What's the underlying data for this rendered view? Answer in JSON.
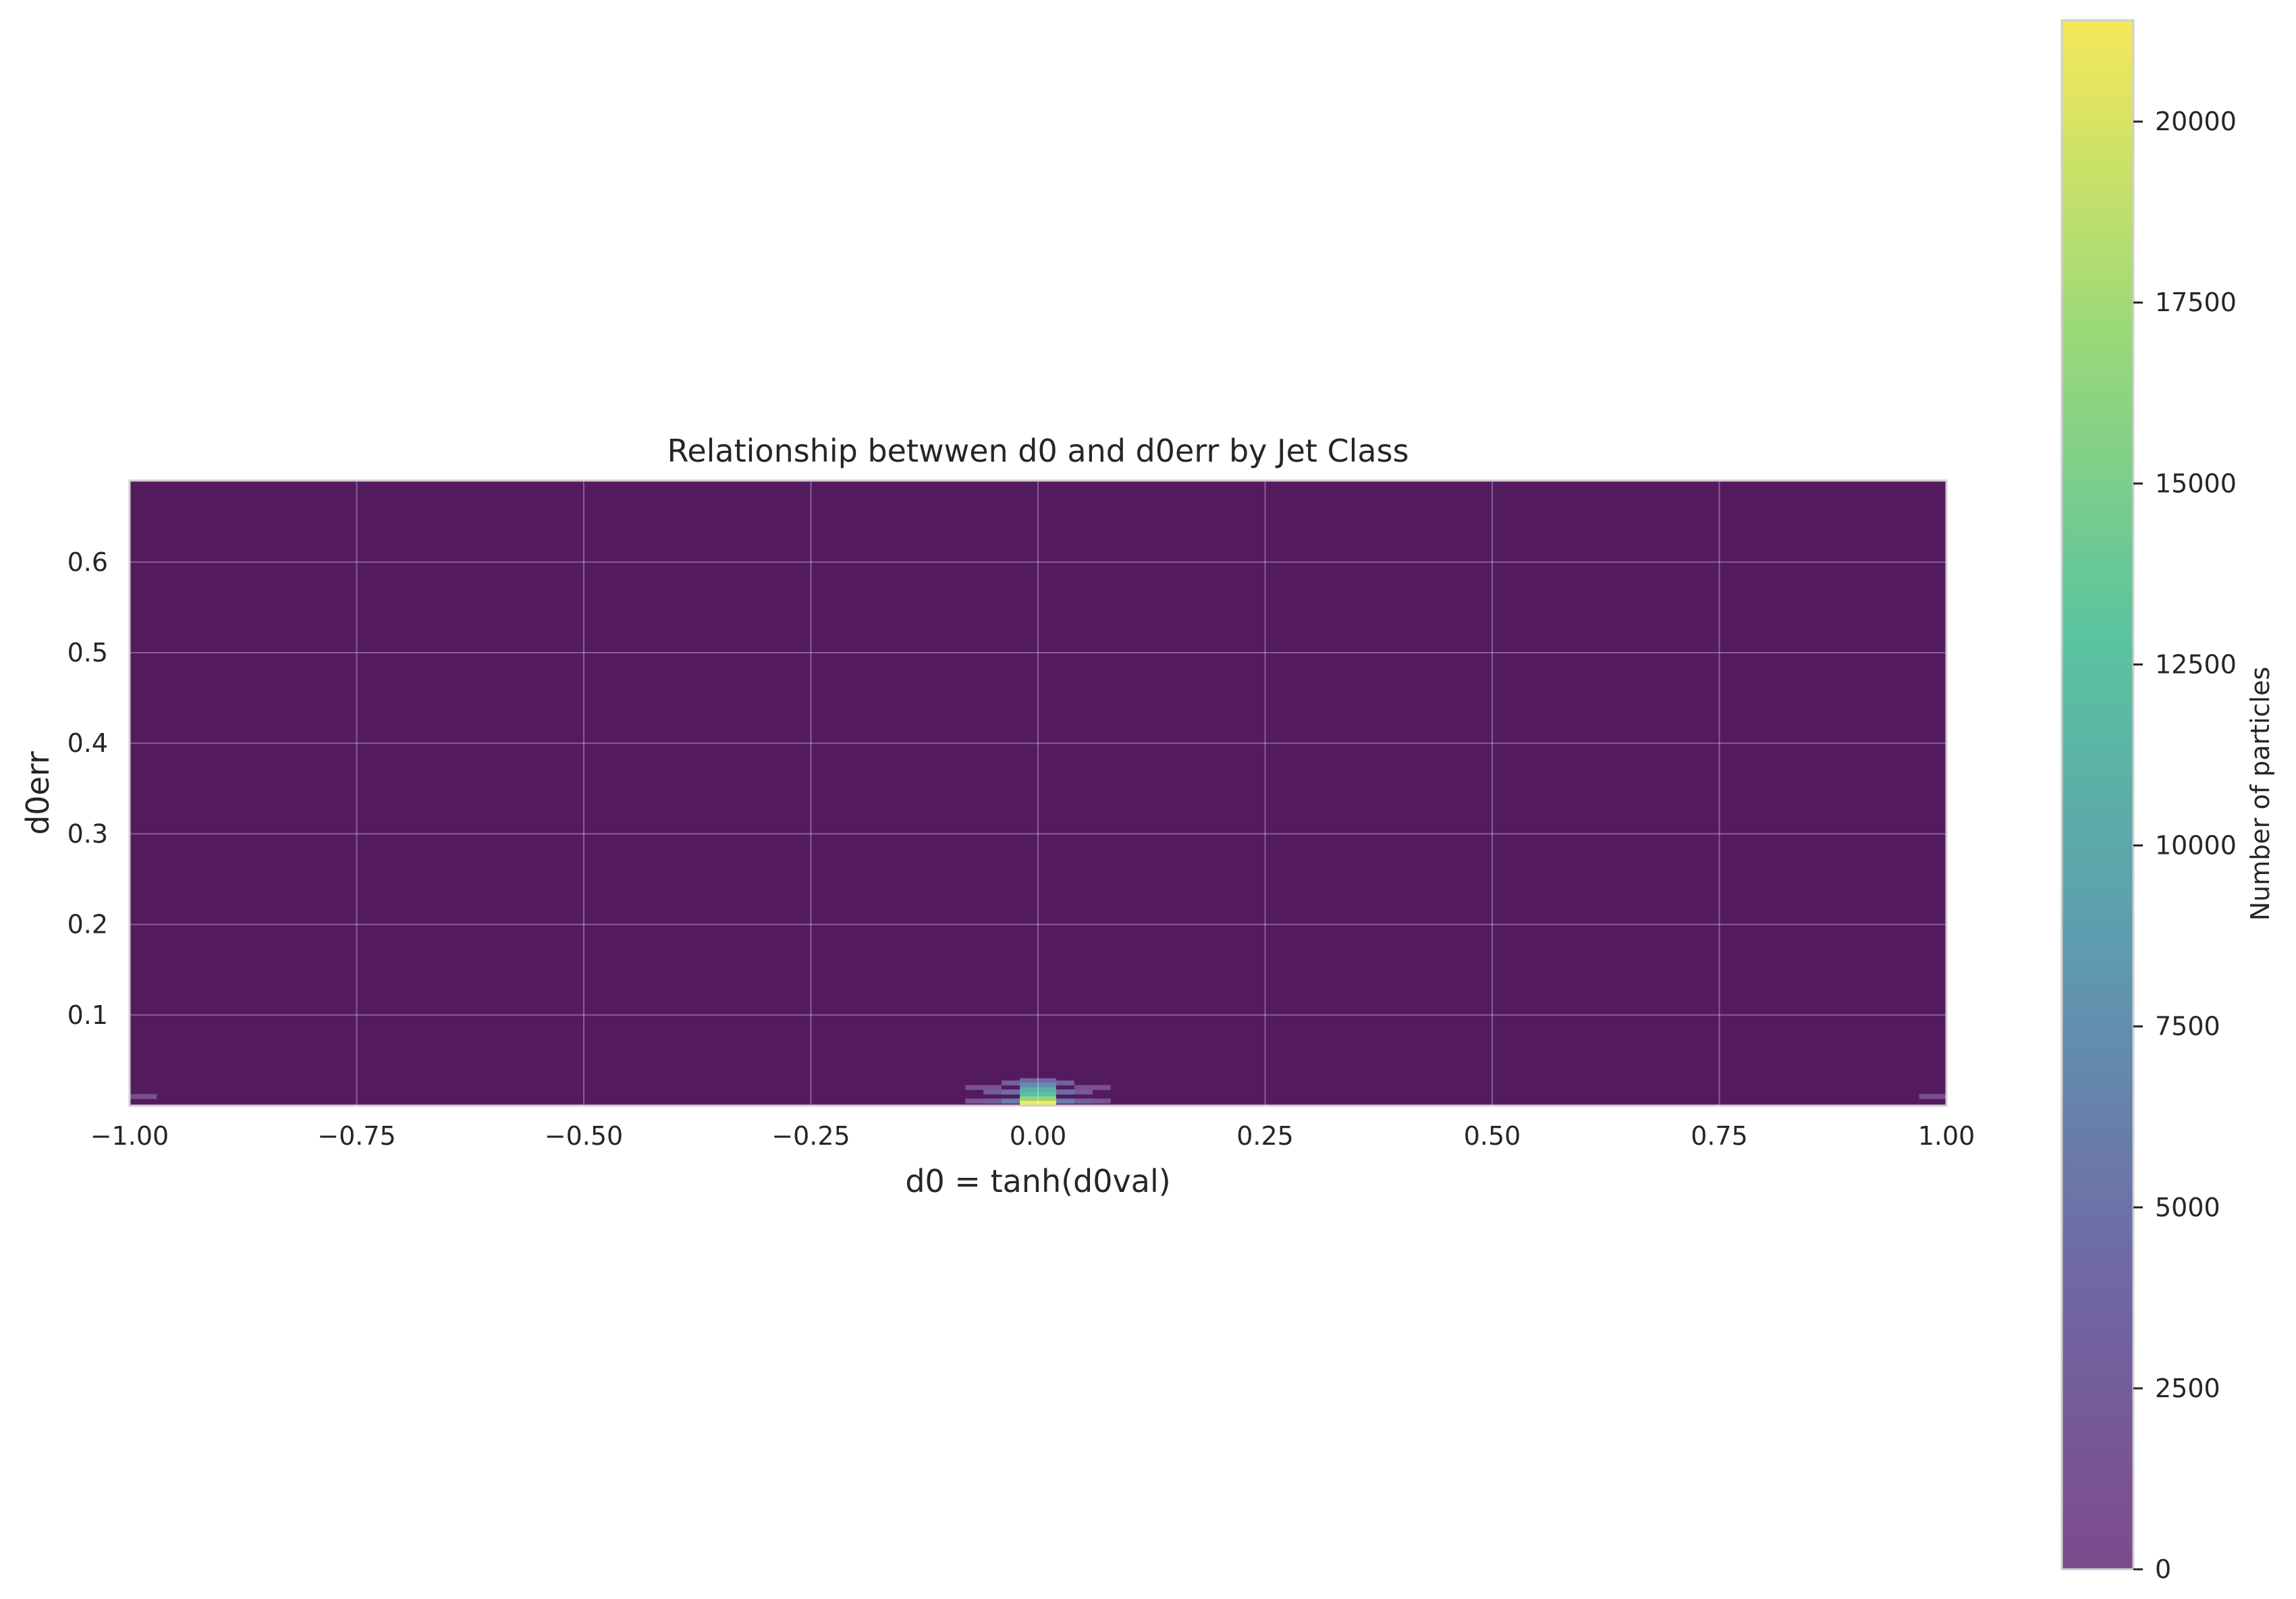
{
  "chart_data": {
    "type": "heatmap",
    "title": "Relationship betwwen d0 and d0err by Jet Class",
    "xlabel": "d0 = tanh(d0val)",
    "ylabel": "d0err",
    "xlim": [
      -1.0,
      1.0
    ],
    "ylim": [
      0.0,
      0.69
    ],
    "x_ticks": [
      -1.0,
      -0.75,
      -0.5,
      -0.25,
      0.0,
      0.25,
      0.5,
      0.75,
      1.0
    ],
    "x_tick_labels": [
      "−1.00",
      "−0.75",
      "−0.50",
      "−0.25",
      "0.00",
      "0.25",
      "0.50",
      "0.75",
      "1.00"
    ],
    "y_ticks": [
      0.1,
      0.2,
      0.3,
      0.4,
      0.5,
      0.6
    ],
    "y_tick_labels": [
      "0.1",
      "0.2",
      "0.3",
      "0.4",
      "0.5",
      "0.6"
    ],
    "grid": true,
    "colormap": "viridis",
    "background_color": "#541a5e",
    "colorbar": {
      "label": "Number of particles",
      "range": [
        0,
        21400
      ],
      "ticks": [
        0,
        2500,
        5000,
        7500,
        10000,
        12500,
        15000,
        17500,
        20000
      ],
      "tick_labels": [
        "0",
        "2500",
        "5000",
        "7500",
        "10000",
        "12500",
        "15000",
        "17500",
        "20000"
      ],
      "stops": [
        "#7d4a8c",
        "#6f6aa6",
        "#5e9bb0",
        "#5ac3a0",
        "#9bd978",
        "#f6e85a"
      ]
    },
    "cells": [
      {
        "x": 0.0,
        "y": 0.0025,
        "count": 21400
      },
      {
        "x": 0.0,
        "y": 0.0075,
        "count": 16500
      },
      {
        "x": 0.0,
        "y": 0.0125,
        "count": 12500
      },
      {
        "x": 0.0,
        "y": 0.0175,
        "count": 10500
      },
      {
        "x": 0.0,
        "y": 0.0225,
        "count": 7500
      },
      {
        "x": 0.0,
        "y": 0.0275,
        "count": 4000
      },
      {
        "x": -0.02,
        "y": 0.005,
        "count": 6000
      },
      {
        "x": 0.02,
        "y": 0.005,
        "count": 6000
      },
      {
        "x": -0.02,
        "y": 0.015,
        "count": 4500
      },
      {
        "x": 0.02,
        "y": 0.015,
        "count": 4500
      },
      {
        "x": -0.02,
        "y": 0.025,
        "count": 3000
      },
      {
        "x": 0.02,
        "y": 0.025,
        "count": 3000
      },
      {
        "x": -0.04,
        "y": 0.005,
        "count": 2500
      },
      {
        "x": 0.04,
        "y": 0.005,
        "count": 2500
      },
      {
        "x": -0.04,
        "y": 0.015,
        "count": 2000
      },
      {
        "x": 0.04,
        "y": 0.015,
        "count": 2000
      },
      {
        "x": -0.06,
        "y": 0.005,
        "count": 1000
      },
      {
        "x": 0.06,
        "y": 0.005,
        "count": 1000
      },
      {
        "x": -0.06,
        "y": 0.02,
        "count": 800
      },
      {
        "x": 0.06,
        "y": 0.02,
        "count": 800
      },
      {
        "x": -0.99,
        "y": 0.01,
        "count": 500
      },
      {
        "x": 0.99,
        "y": 0.01,
        "count": 500
      }
    ]
  }
}
